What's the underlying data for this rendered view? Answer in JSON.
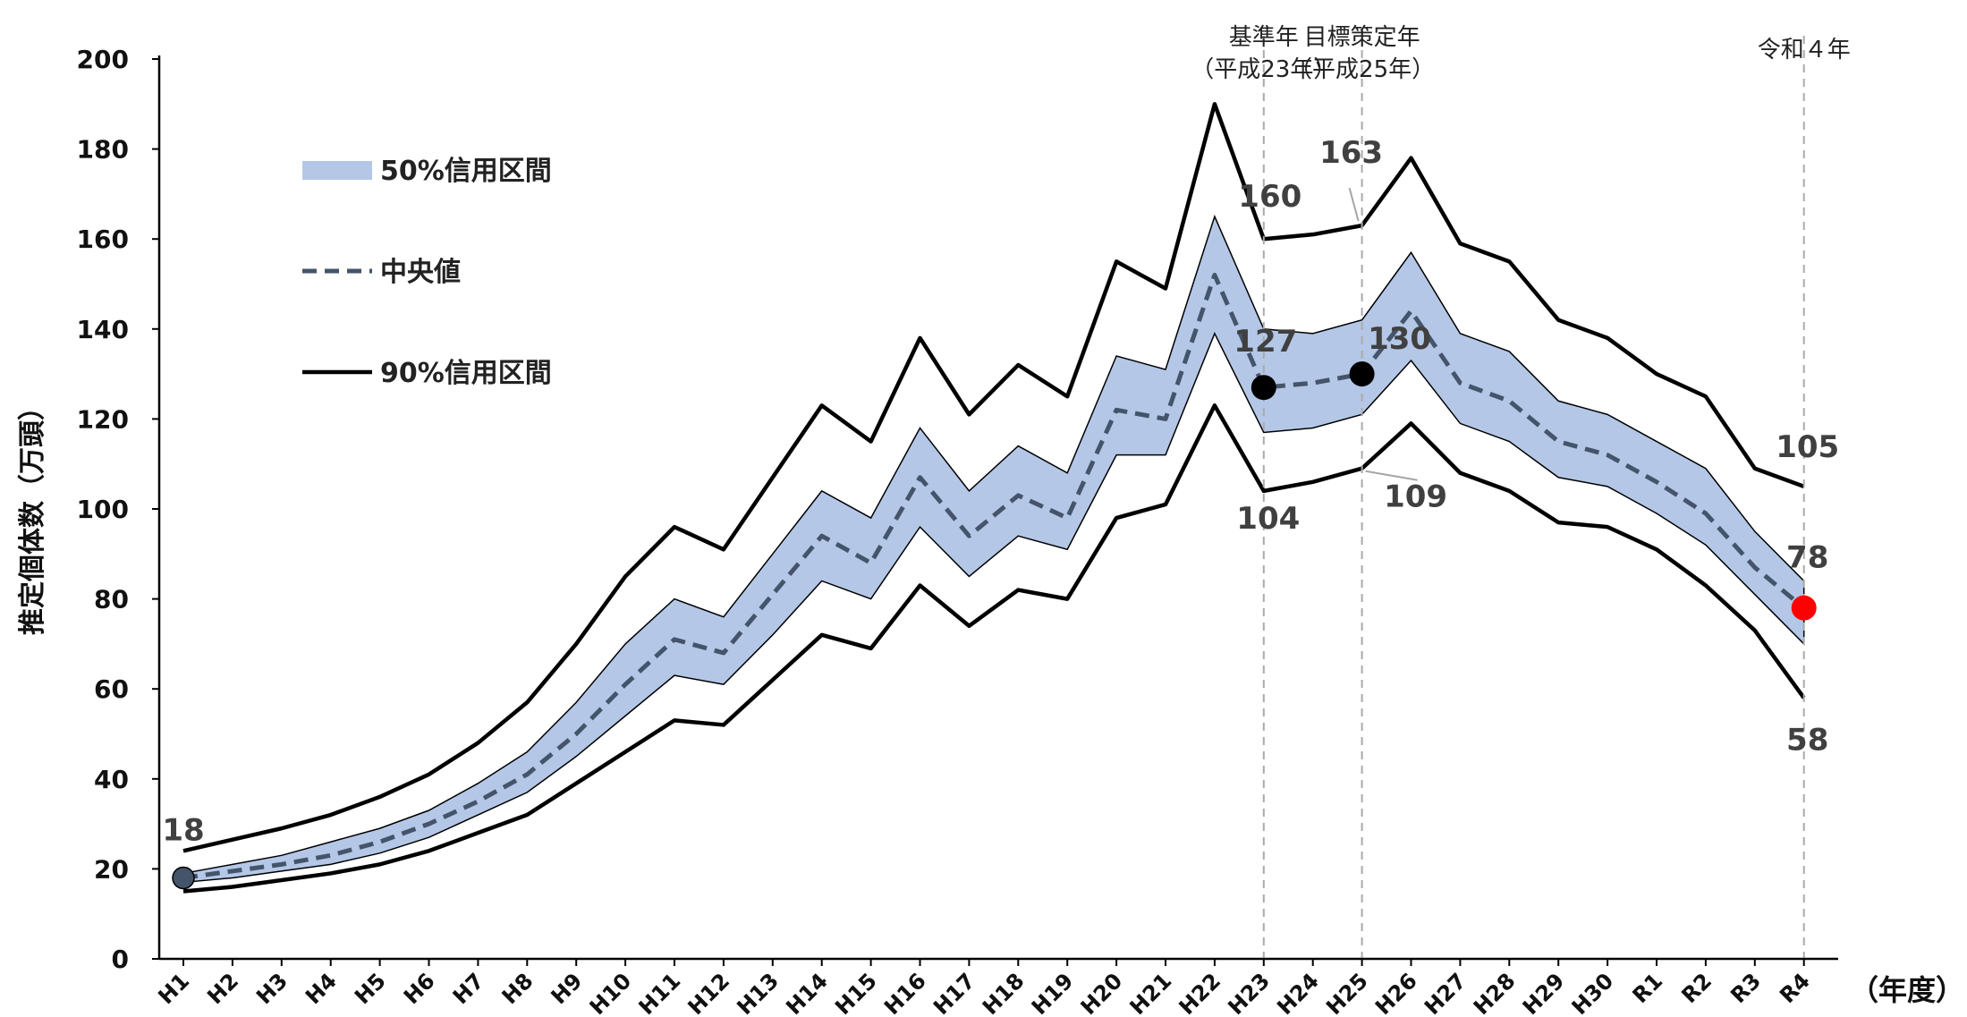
{
  "chart_data": {
    "type": "line",
    "categories": [
      "H1",
      "H2",
      "H3",
      "H4",
      "H5",
      "H6",
      "H7",
      "H8",
      "H9",
      "H10",
      "H11",
      "H12",
      "H13",
      "H14",
      "H15",
      "H16",
      "H17",
      "H18",
      "H19",
      "H20",
      "H21",
      "H22",
      "H23",
      "H24",
      "H25",
      "H26",
      "H27",
      "H28",
      "H29",
      "H30",
      "R1",
      "R2",
      "R3",
      "R4"
    ],
    "ylabel": "推定個体数（万頭）",
    "xlabel": "（年度）",
    "ylim": [
      0,
      200
    ],
    "yticks": [
      0,
      20,
      40,
      60,
      80,
      100,
      120,
      140,
      160,
      180,
      200
    ],
    "grid": false,
    "legend_position": "top-left",
    "legend": [
      {
        "key": "band50",
        "label": "50%信用区間",
        "color": "#b4c7e7"
      },
      {
        "key": "median",
        "label": "中央値",
        "color": "#44546a"
      },
      {
        "key": "ci90",
        "label": "90%信用区間",
        "color": "#000000"
      }
    ],
    "median": [
      18,
      19.5,
      21,
      23,
      26,
      30,
      35,
      41,
      50,
      61,
      71,
      68,
      81,
      94,
      88,
      107,
      94,
      103,
      98,
      122,
      120,
      152,
      127,
      128,
      130,
      144,
      128,
      124,
      115,
      112,
      106,
      99,
      87,
      78
    ],
    "band50_upper": [
      19,
      21,
      23,
      26,
      29,
      33,
      39,
      46,
      57,
      70,
      80,
      76,
      90,
      104,
      98,
      118,
      104,
      114,
      108,
      134,
      131,
      165,
      140,
      139,
      142,
      157,
      139,
      135,
      124,
      121,
      115,
      109,
      95,
      84
    ],
    "band50_lower": [
      17,
      18,
      19.5,
      21,
      23.5,
      27,
      32,
      37,
      45,
      54,
      63,
      61,
      72,
      84,
      80,
      96,
      85,
      94,
      91,
      112,
      112,
      139,
      117,
      118,
      121,
      133,
      119,
      115,
      107,
      105,
      99,
      92,
      81,
      70
    ],
    "ci90_upper": [
      24,
      26.5,
      29,
      32,
      36,
      41,
      48,
      57,
      70,
      85,
      96,
      91,
      107,
      123,
      115,
      138,
      121,
      132,
      125,
      155,
      149,
      190,
      160,
      161,
      163,
      178,
      159,
      155,
      142,
      138,
      130,
      125,
      109,
      105
    ],
    "ci90_lower": [
      15,
      16,
      17.5,
      19,
      21,
      24,
      28,
      32,
      39,
      46,
      53,
      52,
      62,
      72,
      69,
      83,
      74,
      82,
      80,
      98,
      101,
      123,
      104,
      106,
      109,
      119,
      108,
      104,
      97,
      96,
      91,
      83,
      73,
      58
    ],
    "reference_lines": [
      {
        "category": "H23",
        "label_line1": "基準年",
        "label_line2": "（平成23年）"
      },
      {
        "category": "H25",
        "label_line1": "目標策定年",
        "label_line2": "（平成25年）"
      },
      {
        "category": "R4",
        "label_line1": "令和４年",
        "label_line2": ""
      }
    ],
    "highlight_points": [
      {
        "category": "H1",
        "value": 18,
        "color": "#44546a"
      },
      {
        "category": "H23",
        "value": 127,
        "color": "#000000"
      },
      {
        "category": "H25",
        "value": 130,
        "color": "#000000"
      },
      {
        "category": "R4",
        "value": 78,
        "color": "#ff0000"
      }
    ],
    "annotations": [
      {
        "text": "18",
        "category": "H1",
        "value": 18,
        "color": "#404040"
      },
      {
        "text": "160",
        "category": "H23",
        "value": 160,
        "color": "#404040"
      },
      {
        "text": "163",
        "category": "H25",
        "value": 163,
        "color": "#404040"
      },
      {
        "text": "127",
        "category": "H23",
        "value": 127,
        "color": "#404040"
      },
      {
        "text": "130",
        "category": "H25",
        "value": 130,
        "color": "#404040"
      },
      {
        "text": "104",
        "category": "H23",
        "value": 104,
        "color": "#404040"
      },
      {
        "text": "109",
        "category": "H25",
        "value": 109,
        "color": "#404040"
      },
      {
        "text": "105",
        "category": "R4",
        "value": 105,
        "color": "#404040"
      },
      {
        "text": "78",
        "category": "R4",
        "value": 78,
        "color": "#ff0000"
      },
      {
        "text": "58",
        "category": "R4",
        "value": 58,
        "color": "#404040"
      }
    ]
  }
}
